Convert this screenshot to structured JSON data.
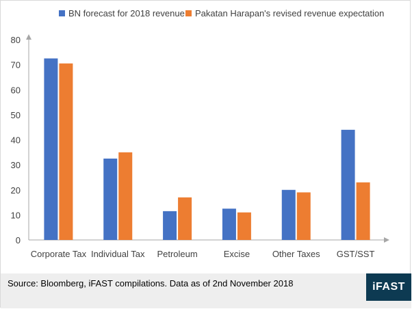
{
  "chart_data": {
    "type": "bar",
    "categories": [
      "Corporate Tax",
      "Individual Tax",
      "Petroleum",
      "Excise",
      "Other Taxes",
      "GST/SST"
    ],
    "series": [
      {
        "name": "BN forecast for 2018 revenue",
        "color": "#4472C4",
        "values": [
          72.5,
          32.5,
          11.5,
          12.5,
          20,
          44
        ]
      },
      {
        "name": "Pakatan Harapan's revised revenue expectation",
        "color": "#ED7D31",
        "values": [
          70.5,
          35,
          17,
          11,
          19,
          23
        ]
      }
    ],
    "ylim": [
      0,
      80
    ],
    "yticks": [
      0,
      10,
      20,
      30,
      40,
      50,
      60,
      70,
      80
    ],
    "grid": false,
    "legend": "top"
  },
  "footer": {
    "source": "Source: Bloomberg, iFAST compilations. Data as of 2nd November 2018",
    "logo_text": "iFAST",
    "logo_color": "#0d3a52",
    "background": "#eeeeee"
  }
}
